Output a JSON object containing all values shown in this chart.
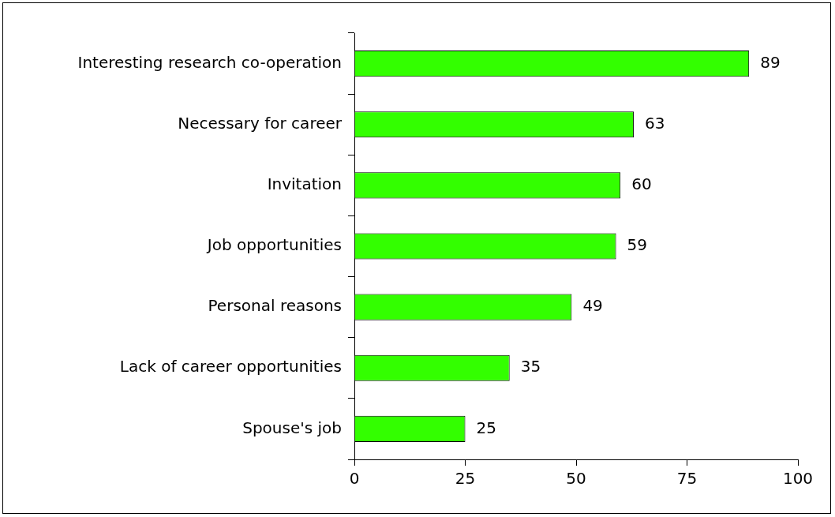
{
  "chart_data": {
    "type": "bar",
    "orientation": "horizontal",
    "categories": [
      "Interesting research co-operation",
      "Necessary for career",
      "Invitation",
      "Job opportunities",
      "Personal reasons",
      "Lack of career opportunities",
      "Spouse's job"
    ],
    "values": [
      89,
      63,
      60,
      59,
      49,
      35,
      25
    ],
    "color": "#33ff00",
    "xlim": [
      0,
      100
    ],
    "xticks": [
      0,
      25,
      50,
      75,
      100
    ],
    "data_labels": true
  }
}
